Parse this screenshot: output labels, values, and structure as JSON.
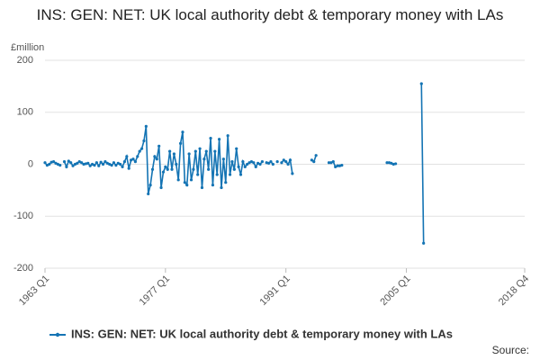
{
  "chart_data": {
    "type": "line",
    "title": "INS: GEN: NET: UK local authority debt & temporary money with LAs",
    "y_label": "£million",
    "source": "Source:",
    "xlim": [
      1963,
      2018.75
    ],
    "xticks": [
      {
        "value": 1963,
        "label": "1963 Q1"
      },
      {
        "value": 1977,
        "label": "1977 Q1"
      },
      {
        "value": 1991,
        "label": "1991 Q1"
      },
      {
        "value": 2005,
        "label": "2005 Q1"
      },
      {
        "value": 2018.75,
        "label": "2018 Q4"
      }
    ],
    "ylim": [
      -200,
      200
    ],
    "yticks": [
      -200,
      -100,
      0,
      100,
      200
    ],
    "grid": true,
    "legend": "bottom",
    "x": [
      1963,
      1963.25,
      1963.5,
      1963.75,
      1964,
      1964.25,
      1964.5,
      1964.75,
      1965,
      1965.25,
      1965.5,
      1965.75,
      1966,
      1966.25,
      1966.5,
      1966.75,
      1967,
      1967.25,
      1967.5,
      1967.75,
      1968,
      1968.25,
      1968.5,
      1968.75,
      1969,
      1969.25,
      1969.5,
      1969.75,
      1970,
      1970.25,
      1970.5,
      1970.75,
      1971,
      1971.25,
      1971.5,
      1971.75,
      1972,
      1972.25,
      1972.5,
      1972.75,
      1973,
      1973.25,
      1973.5,
      1973.75,
      1974,
      1974.25,
      1974.5,
      1974.75,
      1975,
      1975.25,
      1975.5,
      1975.75,
      1976,
      1976.25,
      1976.5,
      1976.75,
      1977,
      1977.25,
      1977.5,
      1977.75,
      1978,
      1978.25,
      1978.5,
      1978.75,
      1979,
      1979.25,
      1979.5,
      1979.75,
      1980,
      1980.25,
      1980.5,
      1980.75,
      1981,
      1981.25,
      1981.5,
      1981.75,
      1982,
      1982.25,
      1982.5,
      1982.75,
      1983,
      1983.25,
      1983.5,
      1983.75,
      1984,
      1984.25,
      1984.5,
      1984.75,
      1985,
      1985.25,
      1985.5,
      1985.75,
      1986,
      1986.25,
      1986.5,
      1986.75,
      1987,
      1987.25,
      1987.5,
      1987.75,
      1988,
      1988.25,
      1988.5,
      1988.75,
      1989,
      1989.25,
      1989.5,
      1989.75,
      1990,
      1990.25,
      1990.5,
      1990.75,
      1991,
      1991.25,
      1991.5,
      1991.75,
      1992,
      1994,
      1994.25,
      1994.5,
      1995,
      1996,
      1996.25,
      1996.5,
      1996.75,
      1997,
      1997.25,
      1997.5,
      1998,
      2002.75,
      2003,
      2003.25,
      2003.5,
      2003.75,
      2005,
      2006.75,
      2007
    ],
    "series": [
      {
        "name": "INS: GEN: NET: UK local authority debt & temporary money with LAs",
        "color": "#1474b4",
        "values": [
          3,
          -2,
          0,
          4,
          5,
          2,
          0,
          -2,
          null,
          5,
          -5,
          6,
          3,
          -3,
          0,
          2,
          5,
          3,
          0,
          1,
          2,
          -3,
          0,
          -2,
          3,
          -3,
          4,
          0,
          5,
          2,
          0,
          -2,
          3,
          -2,
          2,
          0,
          -5,
          5,
          15,
          -8,
          8,
          10,
          5,
          15,
          25,
          30,
          45,
          73,
          -57,
          -40,
          -10,
          15,
          10,
          35,
          -45,
          -15,
          -5,
          -10,
          25,
          -10,
          20,
          0,
          -30,
          40,
          62,
          -35,
          -40,
          20,
          -30,
          -10,
          25,
          -20,
          30,
          -45,
          10,
          25,
          -10,
          50,
          -40,
          25,
          -20,
          48,
          -45,
          10,
          -35,
          55,
          -20,
          5,
          -10,
          30,
          -5,
          -20,
          5,
          -5,
          0,
          3,
          5,
          3,
          -5,
          2,
          0,
          5,
          null,
          3,
          2,
          5,
          0,
          null,
          5,
          null,
          3,
          8,
          5,
          0,
          8,
          -18,
          null,
          8,
          5,
          17,
          null,
          3,
          3,
          5,
          -5,
          -3,
          -3,
          -2,
          null,
          3,
          3,
          2,
          0,
          1,
          null,
          155,
          -152
        ]
      }
    ]
  }
}
